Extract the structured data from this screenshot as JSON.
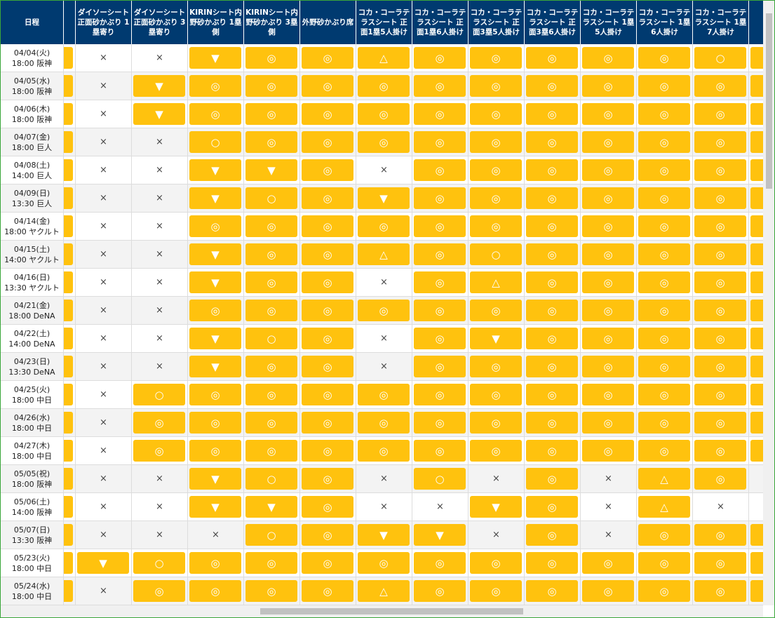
{
  "table": {
    "header": [
      "日程",
      "ダイソーシート正面砂かぶり 1塁寄り",
      "ダイソーシート正面砂かぶり 3塁寄り",
      "KIRINシート内野砂かぶり 1塁側",
      "KIRINシート内野砂かぶり 3塁側",
      "外野砂かぶり席",
      "コカ・コーラテラスシート 正面1塁5人掛け",
      "コカ・コーラテラスシート 正面1塁6人掛け",
      "コカ・コーラテラスシート 正面3塁5人掛け",
      "コカ・コーラテラスシート 正面3塁6人掛け",
      "コカ・コーラテラスシート 1塁5人掛け",
      "コカ・コーラテラスシート 1塁6人掛け",
      "コカ・コーラテラスシート 1塁7人掛け"
    ],
    "rows": [
      {
        "date": "04/04(火)",
        "game": "18:00 阪神",
        "cells": [
          "×",
          "×",
          "▼",
          "◎",
          "◎",
          "△",
          "◎",
          "◎",
          "◎",
          "◎",
          "◎",
          "○"
        ]
      },
      {
        "date": "04/05(水)",
        "game": "18:00 阪神",
        "cells": [
          "×",
          "▼",
          "◎",
          "◎",
          "◎",
          "◎",
          "◎",
          "◎",
          "◎",
          "◎",
          "◎",
          "◎"
        ]
      },
      {
        "date": "04/06(木)",
        "game": "18:00 阪神",
        "cells": [
          "×",
          "▼",
          "◎",
          "◎",
          "◎",
          "◎",
          "◎",
          "◎",
          "◎",
          "◎",
          "◎",
          "◎"
        ]
      },
      {
        "date": "04/07(金)",
        "game": "18:00 巨人",
        "cells": [
          "×",
          "×",
          "○",
          "◎",
          "◎",
          "◎",
          "◎",
          "◎",
          "◎",
          "◎",
          "◎",
          "◎"
        ]
      },
      {
        "date": "04/08(土)",
        "game": "14:00 巨人",
        "cells": [
          "×",
          "×",
          "▼",
          "▼",
          "◎",
          "×",
          "◎",
          "◎",
          "◎",
          "◎",
          "◎",
          "◎"
        ]
      },
      {
        "date": "04/09(日)",
        "game": "13:30 巨人",
        "cells": [
          "×",
          "×",
          "▼",
          "○",
          "◎",
          "▼",
          "◎",
          "◎",
          "◎",
          "◎",
          "◎",
          "◎"
        ]
      },
      {
        "date": "04/14(金)",
        "game": "18:00 ヤクルト",
        "cells": [
          "×",
          "×",
          "◎",
          "◎",
          "◎",
          "◎",
          "◎",
          "◎",
          "◎",
          "◎",
          "◎",
          "◎"
        ]
      },
      {
        "date": "04/15(土)",
        "game": "14:00 ヤクルト",
        "cells": [
          "×",
          "×",
          "▼",
          "◎",
          "◎",
          "△",
          "◎",
          "○",
          "◎",
          "◎",
          "◎",
          "◎"
        ]
      },
      {
        "date": "04/16(日)",
        "game": "13:30 ヤクルト",
        "cells": [
          "×",
          "×",
          "▼",
          "◎",
          "◎",
          "×",
          "◎",
          "△",
          "◎",
          "◎",
          "◎",
          "◎"
        ]
      },
      {
        "date": "04/21(金)",
        "game": "18:00 DeNA",
        "cells": [
          "×",
          "×",
          "◎",
          "◎",
          "◎",
          "◎",
          "◎",
          "◎",
          "◎",
          "◎",
          "◎",
          "◎"
        ]
      },
      {
        "date": "04/22(土)",
        "game": "14:00 DeNA",
        "cells": [
          "×",
          "×",
          "▼",
          "○",
          "◎",
          "×",
          "◎",
          "▼",
          "◎",
          "◎",
          "◎",
          "◎"
        ]
      },
      {
        "date": "04/23(日)",
        "game": "13:30 DeNA",
        "cells": [
          "×",
          "×",
          "▼",
          "◎",
          "◎",
          "×",
          "◎",
          "◎",
          "◎",
          "◎",
          "◎",
          "◎"
        ]
      },
      {
        "date": "04/25(火)",
        "game": "18:00 中日",
        "cells": [
          "×",
          "○",
          "◎",
          "◎",
          "◎",
          "◎",
          "◎",
          "◎",
          "◎",
          "◎",
          "◎",
          "◎"
        ]
      },
      {
        "date": "04/26(水)",
        "game": "18:00 中日",
        "cells": [
          "×",
          "◎",
          "◎",
          "◎",
          "◎",
          "◎",
          "◎",
          "◎",
          "◎",
          "◎",
          "◎",
          "◎"
        ]
      },
      {
        "date": "04/27(木)",
        "game": "18:00 中日",
        "cells": [
          "×",
          "◎",
          "◎",
          "◎",
          "◎",
          "◎",
          "◎",
          "◎",
          "◎",
          "◎",
          "◎",
          "◎"
        ]
      },
      {
        "date": "05/05(祝)",
        "game": "18:00 阪神",
        "cells": [
          "×",
          "×",
          "▼",
          "○",
          "◎",
          "×",
          "○",
          "×",
          "◎",
          "×",
          "△",
          "◎"
        ]
      },
      {
        "date": "05/06(土)",
        "game": "14:00 阪神",
        "cells": [
          "×",
          "×",
          "▼",
          "▼",
          "◎",
          "×",
          "×",
          "▼",
          "◎",
          "×",
          "△",
          "×"
        ]
      },
      {
        "date": "05/07(日)",
        "game": "13:30 阪神",
        "cells": [
          "×",
          "×",
          "×",
          "○",
          "◎",
          "▼",
          "▼",
          "×",
          "◎",
          "×",
          "◎",
          "◎"
        ]
      },
      {
        "date": "05/23(火)",
        "game": "18:00 中日",
        "cells": [
          "▼",
          "○",
          "◎",
          "◎",
          "◎",
          "◎",
          "◎",
          "◎",
          "◎",
          "◎",
          "◎",
          "◎"
        ]
      },
      {
        "date": "05/24(水)",
        "game": "18:00 中日",
        "cells": [
          "×",
          "◎",
          "◎",
          "◎",
          "◎",
          "△",
          "◎",
          "◎",
          "◎",
          "◎",
          "◎",
          "◎"
        ]
      }
    ]
  }
}
